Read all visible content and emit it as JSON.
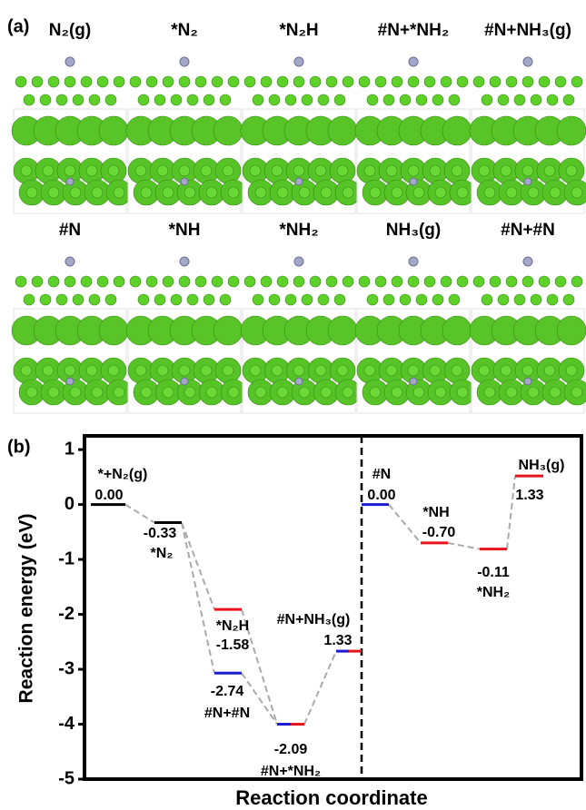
{
  "panel_a": {
    "label": "(a)",
    "structures": [
      "N₂(g)",
      "*N₂",
      "*N₂H",
      "#N+*NH₂",
      "#N+NH₃(g)",
      "#N",
      "*NH",
      "*NH₂",
      "NH₃(g)",
      "#N+#N"
    ]
  },
  "chart_data": {
    "type": "energy-diagram",
    "label": "(b)",
    "xlabel": "Reaction coordinate",
    "ylabel": "Reaction energy (eV)",
    "ylim": [
      -5,
      1.25
    ],
    "yticks": [
      -5,
      -4,
      -3,
      -2,
      -1,
      0,
      1
    ],
    "divider": true,
    "levels": [
      {
        "name": "*+N₂(g)",
        "value": 0,
        "energy_label": "0.00",
        "colors": [
          "#000000"
        ]
      },
      {
        "name": "*N₂",
        "value": -0.33,
        "energy_label": "-0.33",
        "colors": [
          "#000000"
        ]
      },
      {
        "name": "*N₂H",
        "value": -1.91,
        "energy_label": "-1.58",
        "colors": [
          "#e8141c"
        ]
      },
      {
        "name": "#N+#N",
        "value": -3.07,
        "energy_label": "-2.74",
        "colors": [
          "#1c1cd4"
        ]
      },
      {
        "name": "#N+*NH₂",
        "value": -4.0,
        "energy_label": "-2.09",
        "colors": [
          "#1c1cd4",
          "#e8141c"
        ]
      },
      {
        "name": "#N+NH₃(g)",
        "value": -2.67,
        "energy_label": "1.33",
        "colors": [
          "#1c1cd4",
          "#e8141c"
        ]
      },
      {
        "name": "#N",
        "value": 0,
        "energy_label": "0.00",
        "colors": [
          "#1c1cd4"
        ]
      },
      {
        "name": "*NH",
        "value": -0.7,
        "energy_label": "-0.70",
        "colors": [
          "#e8141c"
        ]
      },
      {
        "name": "*NH₂",
        "value": -0.81,
        "energy_label": "-0.11",
        "colors": [
          "#e8141c"
        ]
      },
      {
        "name": "NH₃(g)",
        "value": 0.52,
        "energy_label": "1.33",
        "colors": [
          "#e8141c"
        ]
      }
    ],
    "links": [
      [
        0,
        1
      ],
      [
        1,
        2
      ],
      [
        1,
        3
      ],
      [
        2,
        4
      ],
      [
        3,
        4
      ],
      [
        4,
        5
      ],
      [
        6,
        7
      ],
      [
        7,
        8
      ],
      [
        8,
        9
      ]
    ]
  }
}
